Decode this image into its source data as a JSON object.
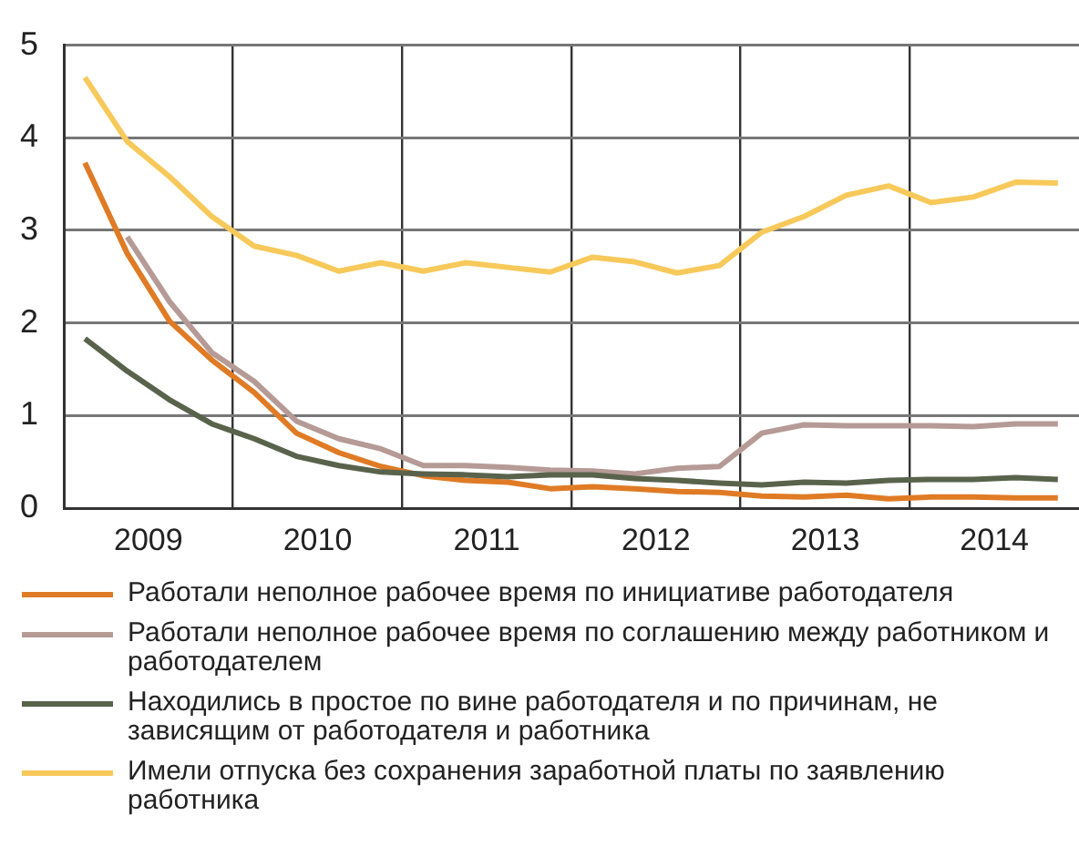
{
  "chart_data": {
    "type": "line",
    "x": [
      2009.125,
      2009.375,
      2009.625,
      2009.875,
      2010.125,
      2010.375,
      2010.625,
      2010.875,
      2011.125,
      2011.375,
      2011.625,
      2011.875,
      2012.125,
      2012.375,
      2012.625,
      2012.875,
      2013.125,
      2013.375,
      2013.625,
      2013.875,
      2014.125,
      2014.375,
      2014.625,
      2014.875
    ],
    "series": [
      {
        "name": "Работали неполное рабочее время по инициативе работодателя",
        "color": "#e07b25",
        "values": [
          3.73,
          2.75,
          2.02,
          1.6,
          1.25,
          0.81,
          0.6,
          0.45,
          0.35,
          0.3,
          0.28,
          0.21,
          0.23,
          0.21,
          0.18,
          0.17,
          0.13,
          0.12,
          0.14,
          0.1,
          0.12,
          0.12,
          0.11,
          0.11
        ]
      },
      {
        "name": "Работали неполное рабочее время по соглашению между работником и работодателем",
        "color": "#b59a96",
        "values": [
          null,
          2.93,
          2.23,
          1.68,
          1.37,
          0.94,
          0.75,
          0.64,
          0.46,
          0.46,
          0.44,
          0.41,
          0.4,
          0.37,
          0.43,
          0.45,
          0.81,
          0.9,
          0.89,
          0.89,
          0.89,
          0.88,
          0.91,
          0.91
        ]
      },
      {
        "name": "Находились в простое по вине работодателя и по причинам, не зависящим от работодателя и работника",
        "color": "#59634c",
        "values": [
          1.83,
          1.48,
          1.17,
          0.91,
          0.75,
          0.56,
          0.46,
          0.39,
          0.37,
          0.36,
          0.34,
          0.36,
          0.36,
          0.32,
          0.3,
          0.27,
          0.25,
          0.28,
          0.27,
          0.3,
          0.31,
          0.31,
          0.33,
          0.31
        ]
      },
      {
        "name": "Имели отпуска без сохранения заработной платы по заявлению работника",
        "color": "#f7c95a",
        "values": [
          4.65,
          3.96,
          3.58,
          3.15,
          2.83,
          2.73,
          2.56,
          2.65,
          2.56,
          2.65,
          2.6,
          2.55,
          2.71,
          2.66,
          2.54,
          2.62,
          2.98,
          3.15,
          3.38,
          3.48,
          3.3,
          3.36,
          3.52,
          3.51
        ]
      }
    ],
    "xlim": [
      2009,
      2015
    ],
    "xticks": [
      {
        "value": 2009.5,
        "label": "2009"
      },
      {
        "value": 2010,
        "label": null
      },
      {
        "value": 2010.5,
        "label": "2010"
      },
      {
        "value": 2011,
        "label": null
      },
      {
        "value": 2011.5,
        "label": "2011"
      },
      {
        "value": 2012,
        "label": null
      },
      {
        "value": 2012.5,
        "label": "2012"
      },
      {
        "value": 2013,
        "label": null
      },
      {
        "value": 2013.5,
        "label": "2013"
      },
      {
        "value": 2014,
        "label": null
      },
      {
        "value": 2014.5,
        "label": "2014"
      }
    ],
    "ylim": [
      0,
      5
    ],
    "yticks": [
      0,
      1,
      2,
      3,
      4,
      5
    ],
    "grid": true,
    "legend": "bottom",
    "marker": "none",
    "line_style": "solid"
  }
}
